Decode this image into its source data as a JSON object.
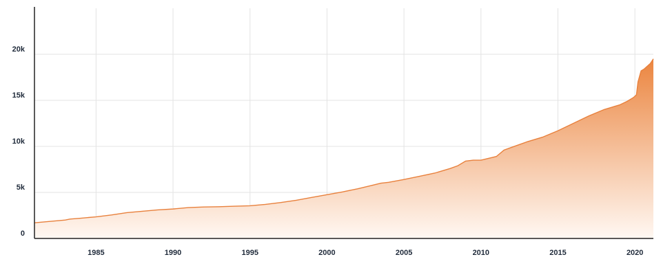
{
  "chart_data": {
    "type": "area",
    "title": "",
    "xlabel": "",
    "ylabel": "",
    "xlim": [
      1981,
      2021.2
    ],
    "ylim": [
      0,
      25000
    ],
    "grid": true,
    "legend": "none",
    "colors": {
      "line": "#e8803c",
      "fill_top": "#eb853f",
      "fill_bottom": "#fff8f3",
      "grid": "#e3e3e3",
      "axis": "#222222"
    },
    "x_ticks": [
      {
        "value": 1985,
        "label": "1985"
      },
      {
        "value": 1990,
        "label": "1990"
      },
      {
        "value": 1995,
        "label": "1995"
      },
      {
        "value": 2000,
        "label": "2000"
      },
      {
        "value": 2005,
        "label": "2005"
      },
      {
        "value": 2010,
        "label": "2010"
      },
      {
        "value": 2015,
        "label": "2015"
      },
      {
        "value": 2020,
        "label": "2020"
      }
    ],
    "y_ticks": [
      {
        "value": 0,
        "label": "0"
      },
      {
        "value": 5000,
        "label": "5k"
      },
      {
        "value": 10000,
        "label": "10k"
      },
      {
        "value": 15000,
        "label": "15k"
      },
      {
        "value": 20000,
        "label": "20k"
      }
    ],
    "series": [
      {
        "x": [
          1981.0,
          1982.0,
          1983.0,
          1983.3,
          1984.0,
          1985.0,
          1986.0,
          1987.0,
          1988.0,
          1989.0,
          1990.0,
          1991.0,
          1992.0,
          1993.0,
          1994.0,
          1995.0,
          1996.0,
          1997.0,
          1998.0,
          1999.0,
          2000.0,
          2001.0,
          2002.0,
          2003.0,
          2003.5,
          2004.0,
          2005.0,
          2006.0,
          2007.0,
          2008.0,
          2008.5,
          2009.0,
          2009.5,
          2010.0,
          2011.0,
          2011.5,
          2012.0,
          2013.0,
          2014.0,
          2015.0,
          2016.0,
          2017.0,
          2018.0,
          2019.0,
          2019.5,
          2019.9,
          2020.1,
          2020.2,
          2020.4,
          2020.6,
          2020.8,
          2021.0,
          2021.2
        ],
        "y": [
          1700,
          1850,
          2000,
          2100,
          2200,
          2350,
          2550,
          2800,
          2950,
          3100,
          3200,
          3350,
          3420,
          3450,
          3500,
          3550,
          3700,
          3900,
          4150,
          4450,
          4750,
          5050,
          5400,
          5800,
          6000,
          6100,
          6400,
          6750,
          7100,
          7600,
          7900,
          8400,
          8500,
          8500,
          8900,
          9600,
          9900,
          10500,
          11000,
          11700,
          12500,
          13300,
          14000,
          14500,
          14900,
          15300,
          15600,
          17000,
          18200,
          18400,
          18700,
          19000,
          19500
        ]
      }
    ]
  }
}
